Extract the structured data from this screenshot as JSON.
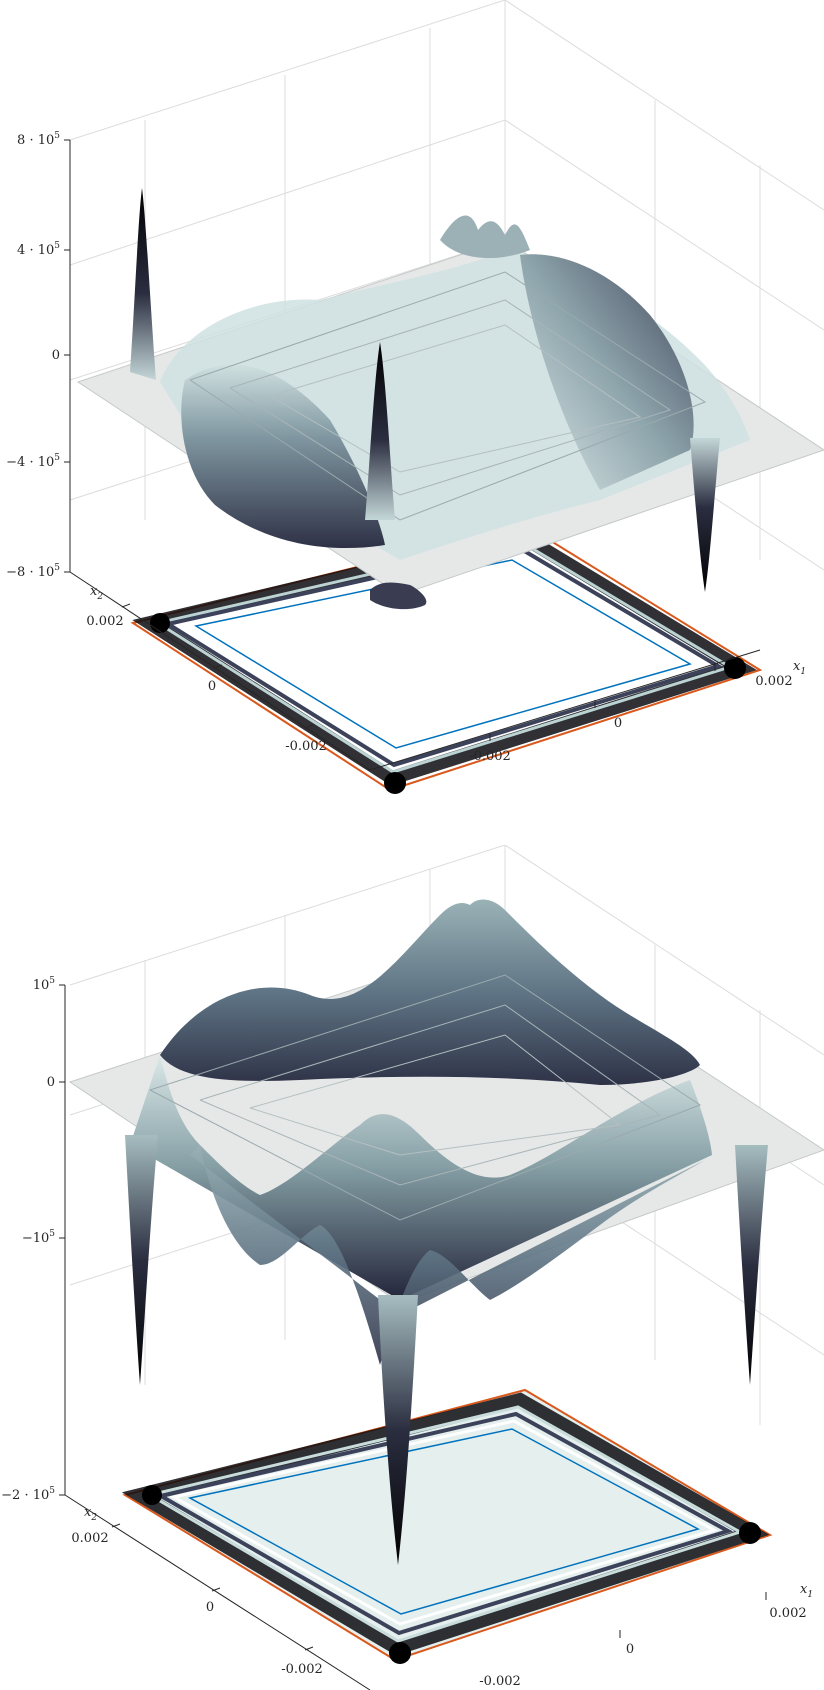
{
  "chart_data": [
    {
      "type": "surface",
      "title": "",
      "zlim": [
        -800000,
        800000
      ],
      "z_ticks": [
        {
          "value": 800000,
          "label": "8 · 10",
          "exp": "5"
        },
        {
          "value": 400000,
          "label": "4 · 10",
          "exp": "5"
        },
        {
          "value": 0,
          "label": "0",
          "exp": ""
        },
        {
          "value": -400000,
          "label": "−4 · 10",
          "exp": "5"
        },
        {
          "value": -800000,
          "label": "−8 · 10",
          "exp": "5"
        }
      ],
      "x1_ticks": [
        {
          "value": -0.002,
          "label": "-0.002"
        },
        {
          "value": 0,
          "label": "0"
        },
        {
          "value": 0.002,
          "label": "0.002"
        }
      ],
      "x2_ticks": [
        {
          "value": 0.002,
          "label": "0.002"
        },
        {
          "value": 0,
          "label": "0"
        },
        {
          "value": -0.002,
          "label": "-0.002"
        }
      ],
      "xlabel": "x",
      "xlabel_sub": "1",
      "ylabel": "x",
      "ylabel_sub": "2",
      "peaks": [
        {
          "where": "left corner",
          "z": 650000
        },
        {
          "where": "front center",
          "z": 250000
        },
        {
          "where": "back center",
          "z": 180000
        },
        {
          "where": "right corner",
          "z": -650000
        }
      ],
      "colormap": "bone",
      "grid": true,
      "contour_projection": true
    },
    {
      "type": "surface",
      "title": "",
      "zlim": [
        -200000,
        100000
      ],
      "z_ticks": [
        {
          "value": 100000,
          "label": "10",
          "exp": "5"
        },
        {
          "value": 0,
          "label": "0",
          "exp": ""
        },
        {
          "value": -100000,
          "label": "−10",
          "exp": "5"
        },
        {
          "value": -200000,
          "label": "−2 · 10",
          "exp": "5"
        }
      ],
      "x1_ticks": [
        {
          "value": -0.002,
          "label": "-0.002"
        },
        {
          "value": 0,
          "label": "0"
        },
        {
          "value": 0.002,
          "label": "0.002"
        }
      ],
      "x2_ticks": [
        {
          "value": 0.002,
          "label": "0.002"
        },
        {
          "value": 0,
          "label": "0"
        },
        {
          "value": -0.002,
          "label": "-0.002"
        }
      ],
      "xlabel": "x",
      "xlabel_sub": "1",
      "ylabel": "x",
      "ylabel_sub": "2",
      "peaks": [
        {
          "where": "back center",
          "z": 110000
        },
        {
          "where": "front center",
          "z": -220000
        },
        {
          "where": "left corner",
          "z": -195000
        },
        {
          "where": "right corner",
          "z": -195000
        }
      ],
      "colormap": "bone",
      "grid": true,
      "contour_projection": true
    }
  ]
}
